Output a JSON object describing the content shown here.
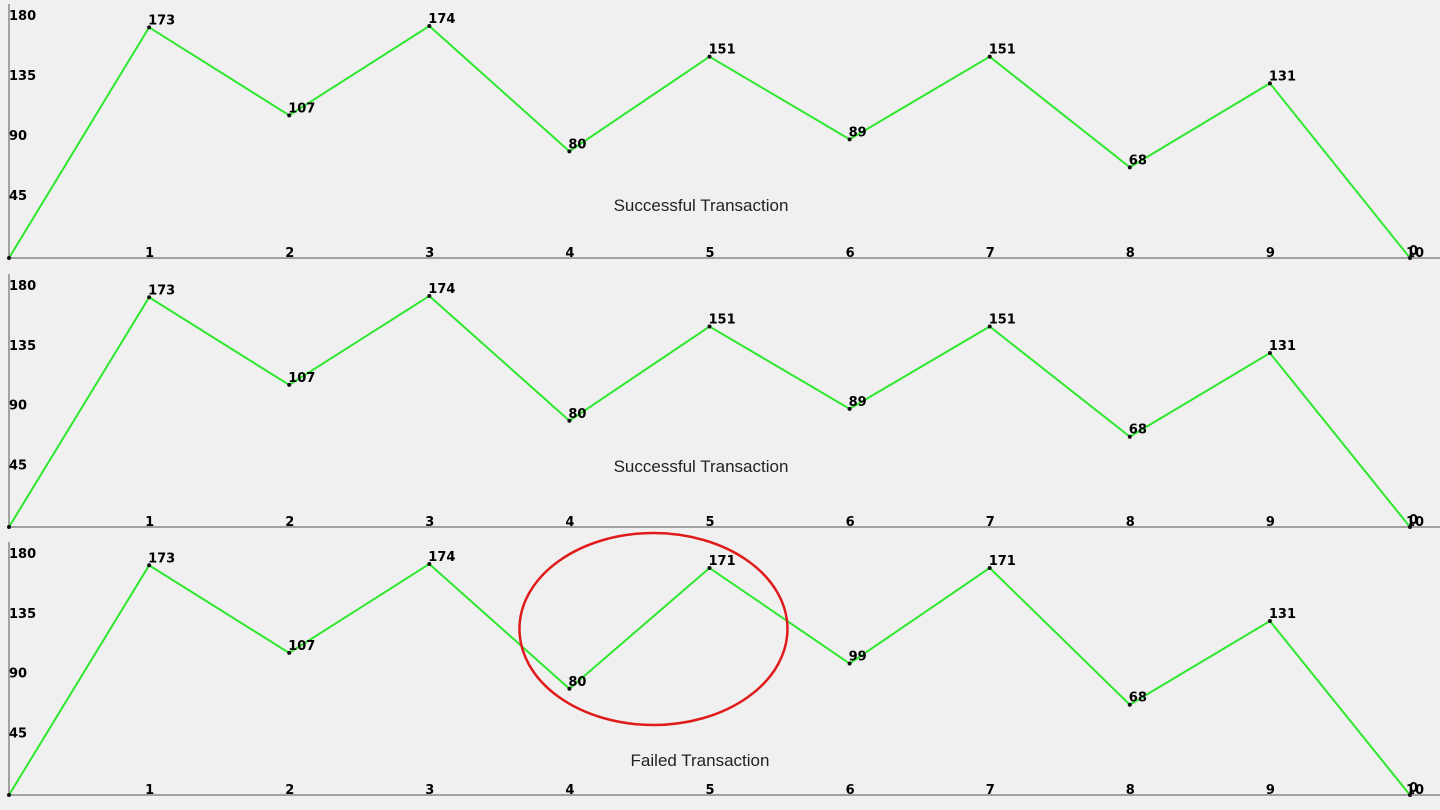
{
  "colors": {
    "background": "#f0f0f0",
    "line": "#2ee82e",
    "axis": "#555555",
    "highlight": "#e01b1b"
  },
  "chart_data": [
    {
      "type": "line",
      "title": "Successful Transaction",
      "x": [
        0,
        1,
        2,
        3,
        4,
        5,
        6,
        7,
        8,
        9,
        10
      ],
      "x_tick_labels": [
        "1",
        "2",
        "3",
        "4",
        "5",
        "6",
        "7",
        "8",
        "9",
        "10"
      ],
      "y_tick_labels": [
        "45",
        "90",
        "135",
        "180"
      ],
      "values": [
        0,
        173,
        107,
        174,
        80,
        151,
        89,
        151,
        68,
        131,
        0
      ],
      "data_labels": [
        "",
        "173",
        "107",
        "174",
        "80",
        "151",
        "89",
        "151",
        "68",
        "131",
        "0"
      ],
      "ylim": [
        0,
        180
      ],
      "xlim": [
        0,
        10
      ],
      "grid": false
    },
    {
      "type": "line",
      "title": "Successful Transaction",
      "x": [
        0,
        1,
        2,
        3,
        4,
        5,
        6,
        7,
        8,
        9,
        10
      ],
      "x_tick_labels": [
        "1",
        "2",
        "3",
        "4",
        "5",
        "6",
        "7",
        "8",
        "9",
        "10"
      ],
      "y_tick_labels": [
        "45",
        "90",
        "135",
        "180"
      ],
      "values": [
        0,
        173,
        107,
        174,
        80,
        151,
        89,
        151,
        68,
        131,
        0
      ],
      "data_labels": [
        "",
        "173",
        "107",
        "174",
        "80",
        "151",
        "89",
        "151",
        "68",
        "131",
        "0"
      ],
      "ylim": [
        0,
        180
      ],
      "xlim": [
        0,
        10
      ],
      "grid": false
    },
    {
      "type": "line",
      "title": "Failed Transaction",
      "x": [
        0,
        1,
        2,
        3,
        4,
        5,
        6,
        7,
        8,
        9,
        10
      ],
      "x_tick_labels": [
        "1",
        "2",
        "3",
        "4",
        "5",
        "6",
        "7",
        "8",
        "9",
        "10"
      ],
      "y_tick_labels": [
        "45",
        "90",
        "135",
        "180"
      ],
      "values": [
        0,
        173,
        107,
        174,
        80,
        171,
        99,
        171,
        68,
        131,
        0
      ],
      "data_labels": [
        "",
        "173",
        "107",
        "174",
        "80",
        "171",
        "99",
        "171",
        "68",
        "131",
        "0"
      ],
      "ylim": [
        0,
        180
      ],
      "xlim": [
        0,
        10
      ],
      "grid": false,
      "highlight_region": {
        "x": [
          4,
          5
        ],
        "shape": "ellipse"
      }
    }
  ]
}
